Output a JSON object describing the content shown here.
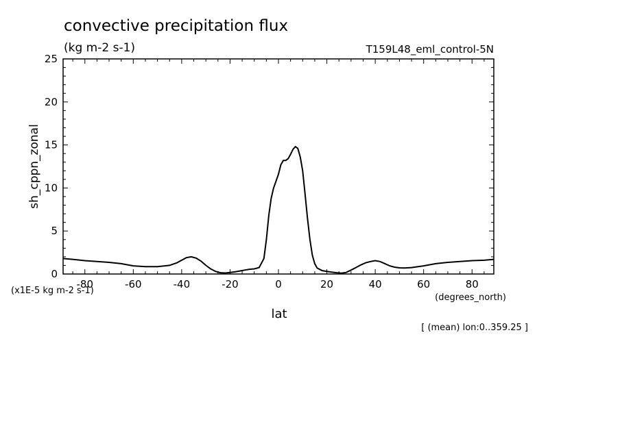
{
  "chart_data": {
    "type": "line",
    "title": "convective precipitation flux",
    "units": "(kg m-2 s-1)",
    "run_label": "T159L48_eml_control-5N",
    "ylabel": "sh_cppn_zonal",
    "xlabel": "lat",
    "x_units": "(degrees_north)",
    "y_scale_note": "(x1E-5 kg m-2 s-1)",
    "footnote": "[ (mean) lon:0..359.25 ]",
    "xlim": [
      -89,
      89
    ],
    "ylim": [
      0,
      25
    ],
    "x_major_ticks": [
      -80,
      -60,
      -40,
      -20,
      0,
      20,
      40,
      60,
      80
    ],
    "x_tick_labels": [
      "-80",
      "-60",
      "-40",
      "-20",
      "0",
      "20",
      "40",
      "60",
      "80"
    ],
    "y_major_ticks": [
      0,
      5,
      10,
      15,
      20,
      25
    ],
    "y_tick_labels": [
      "0",
      "5",
      "10",
      "15",
      "20",
      "25"
    ],
    "series": [
      {
        "name": "sh_cppn_zonal",
        "x": [
          -89,
          -85,
          -80,
          -75,
          -70,
          -65,
          -60,
          -55,
          -50,
          -45,
          -42,
          -40,
          -38,
          -36,
          -34,
          -32,
          -30,
          -28,
          -26,
          -24,
          -22,
          -20,
          -18,
          -16,
          -14,
          -12,
          -10,
          -8,
          -6,
          -5,
          -4,
          -3,
          -2,
          -1,
          0,
          1,
          2,
          3,
          4,
          5,
          6,
          7,
          8,
          9,
          10,
          11,
          12,
          13,
          14,
          15,
          16,
          18,
          20,
          22,
          24,
          26,
          28,
          30,
          32,
          34,
          36,
          38,
          40,
          42,
          44,
          46,
          48,
          50,
          52,
          55,
          60,
          65,
          70,
          75,
          80,
          85,
          89
        ],
        "y": [
          1.8,
          1.7,
          1.55,
          1.45,
          1.35,
          1.2,
          0.95,
          0.85,
          0.85,
          1.0,
          1.3,
          1.6,
          1.9,
          2.0,
          1.85,
          1.5,
          1.0,
          0.6,
          0.3,
          0.15,
          0.12,
          0.18,
          0.25,
          0.35,
          0.45,
          0.55,
          0.6,
          0.75,
          1.8,
          4.0,
          6.8,
          8.8,
          10.0,
          10.8,
          11.6,
          12.7,
          13.2,
          13.2,
          13.4,
          13.9,
          14.5,
          14.8,
          14.6,
          13.6,
          12.0,
          9.3,
          6.5,
          4.0,
          2.2,
          1.2,
          0.7,
          0.4,
          0.3,
          0.22,
          0.15,
          0.1,
          0.18,
          0.45,
          0.75,
          1.05,
          1.3,
          1.45,
          1.55,
          1.45,
          1.2,
          0.95,
          0.8,
          0.72,
          0.7,
          0.75,
          0.95,
          1.2,
          1.35,
          1.45,
          1.55,
          1.6,
          1.7
        ]
      }
    ]
  }
}
